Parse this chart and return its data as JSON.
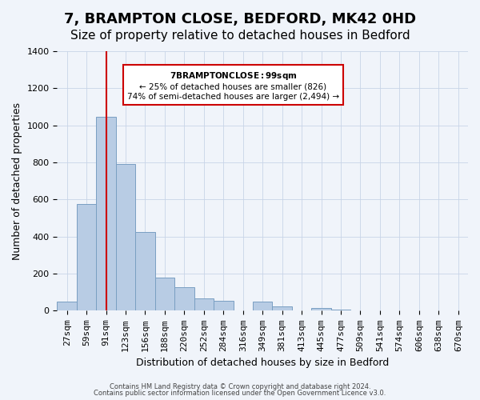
{
  "title": "7, BRAMPTON CLOSE, BEDFORD, MK42 0HD",
  "subtitle": "Size of property relative to detached houses in Bedford",
  "xlabel": "Distribution of detached houses by size in Bedford",
  "ylabel": "Number of detached properties",
  "bar_labels": [
    "27sqm",
    "59sqm",
    "91sqm",
    "123sqm",
    "156sqm",
    "188sqm",
    "220sqm",
    "252sqm",
    "284sqm",
    "316sqm",
    "349sqm",
    "381sqm",
    "413sqm",
    "445sqm",
    "477sqm",
    "509sqm",
    "541sqm",
    "574sqm",
    "606sqm",
    "638sqm",
    "670sqm"
  ],
  "bar_heights": [
    50,
    575,
    1045,
    790,
    425,
    178,
    125,
    65,
    55,
    0,
    48,
    25,
    0,
    15,
    5,
    0,
    0,
    0,
    0,
    0,
    0
  ],
  "bar_color": "#b8cce4",
  "bar_edge_color": "#7a9fc2",
  "vline_x": 2,
  "vline_color": "#cc0000",
  "ylim": [
    0,
    1400
  ],
  "yticks": [
    0,
    200,
    400,
    600,
    800,
    1000,
    1200,
    1400
  ],
  "annotation_title": "7 BRAMPTON CLOSE: 99sqm",
  "annotation_line1": "← 25% of detached houses are smaller (826)",
  "annotation_line2": "74% of semi-detached houses are larger (2,494) →",
  "annotation_box_color": "#ffffff",
  "annotation_box_edge": "#cc0000",
  "footer1": "Contains HM Land Registry data © Crown copyright and database right 2024.",
  "footer2": "Contains public sector information licensed under the Open Government Licence v3.0.",
  "bg_color": "#f0f4fa",
  "plot_bg_color": "#f0f4fa",
  "title_fontsize": 13,
  "subtitle_fontsize": 11,
  "axis_label_fontsize": 9,
  "tick_fontsize": 8
}
